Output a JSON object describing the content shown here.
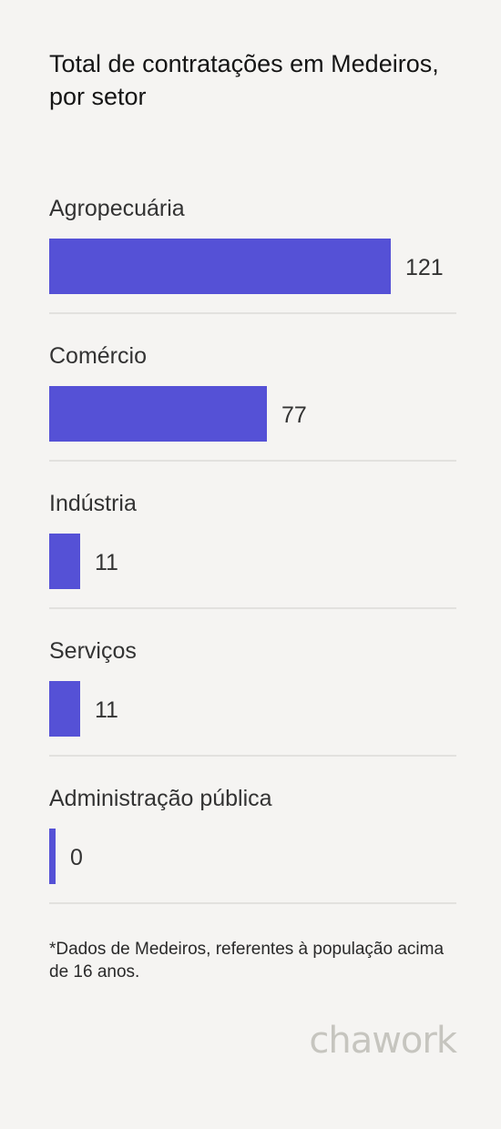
{
  "header": {
    "title": "Total de contratações em Medeiros, por setor"
  },
  "chart_data": {
    "type": "bar",
    "orientation": "horizontal",
    "title": "Total de contratações em Medeiros, por setor",
    "categories": [
      "Agropecuária",
      "Comércio",
      "Indústria",
      "Serviços",
      "Administração pública"
    ],
    "values": [
      121,
      77,
      11,
      11,
      0
    ],
    "bar_color": "#5551d6",
    "grid": false
  },
  "footnote": "*Dados de Medeiros, referentes à população acima de 16 anos.",
  "brand": {
    "logo_text": "chawork",
    "logo_color": "#c6c5bf"
  }
}
